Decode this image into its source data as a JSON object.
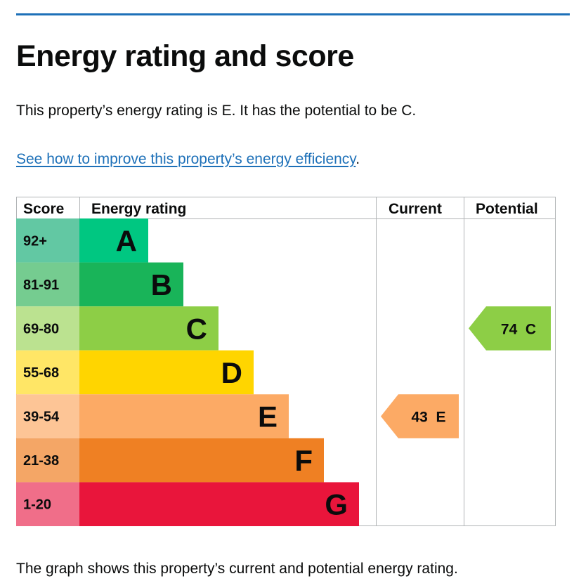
{
  "heading": "Energy rating and score",
  "summary": "This property’s energy rating is E. It has the potential to be C.",
  "improve_link": "See how to improve this property’s energy efficiency",
  "improve_suffix": ".",
  "footnote": "The graph shows this property’s current and potential energy rating.",
  "colors": {
    "accent_rule": "#1d70b8",
    "link": "#1d70b8",
    "grid": "#b1b4b6"
  },
  "chart_data": {
    "type": "bar",
    "columns": [
      "Score",
      "Energy rating",
      "Current",
      "Potential"
    ],
    "bands": [
      {
        "letter": "A",
        "range": "92+",
        "color": "#00c781",
        "score_color": "#62c8a3"
      },
      {
        "letter": "B",
        "range": "81-91",
        "color": "#19b459",
        "score_color": "#75cc90"
      },
      {
        "letter": "C",
        "range": "69-80",
        "color": "#8dce46",
        "score_color": "#bbe290"
      },
      {
        "letter": "D",
        "range": "55-68",
        "color": "#ffd500",
        "score_color": "#ffe666"
      },
      {
        "letter": "E",
        "range": "39-54",
        "color": "#fcaa65",
        "score_color": "#fdc596"
      },
      {
        "letter": "F",
        "range": "21-38",
        "color": "#ef8023",
        "score_color": "#f4a666"
      },
      {
        "letter": "G",
        "range": "1-20",
        "color": "#e9153b",
        "score_color": "#f06e89"
      }
    ],
    "current": {
      "score": "43",
      "letter": "E",
      "band": "E",
      "color": "#fcaa65"
    },
    "potential": {
      "score": "74",
      "letter": "C",
      "band": "C",
      "color": "#8dce46"
    }
  }
}
